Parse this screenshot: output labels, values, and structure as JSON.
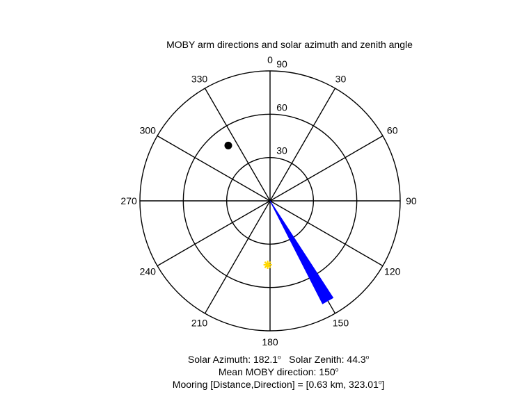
{
  "chart_data": {
    "type": "polar",
    "title": "MOBY arm directions and solar azimuth and zenith angle",
    "angle_ticks": [
      0,
      30,
      60,
      90,
      120,
      150,
      180,
      210,
      240,
      270,
      300,
      330
    ],
    "angle_labels": [
      "0",
      "30",
      "60",
      "90",
      "120",
      "150",
      "180",
      "210",
      "240",
      "270",
      "300",
      "330"
    ],
    "radial_ticks": [
      30,
      60,
      90
    ],
    "radial_labels": [
      "30",
      "60",
      "90"
    ],
    "rlim": [
      0,
      90
    ],
    "angle_direction": "clockwise",
    "zero_at": "top",
    "arm_wedge": {
      "azimuth_from": 147,
      "azimuth_to": 153,
      "r": 80,
      "color": "#0000ff"
    },
    "sun": {
      "azimuth": 182.1,
      "zenith": 44.3,
      "color": "#ffd700"
    },
    "mooring": {
      "azimuth": 323.01,
      "r": 48,
      "color": "#000000"
    },
    "annotations": {
      "solar_azimuth_label": "Solar Azimuth: 182.1",
      "solar_zenith_label": "Solar Zenith: 44.3",
      "mean_direction_label": "Mean MOBY direction: 150",
      "mooring_label_start": "Mooring [Distance,Direction] = [0.63 km, 323.01",
      "mooring_label_end": "]",
      "degree_mark": "o"
    }
  }
}
